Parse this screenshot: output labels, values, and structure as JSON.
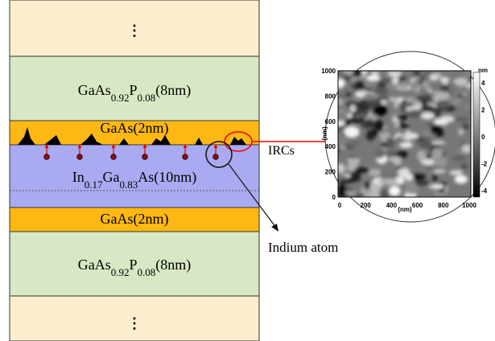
{
  "stack": {
    "top_ellipsis": "⋮",
    "bottom_ellipsis": "⋮",
    "layers": [
      {
        "label": [
          "GaAs",
          "0.92",
          "P",
          "0.08",
          "(8nm)"
        ]
      },
      {
        "label": [
          "GaAs(2nm)"
        ]
      },
      {
        "label": [
          "In",
          "0.17",
          "Ga",
          "0.83",
          "As(10nm)"
        ]
      },
      {
        "label": [
          "GaAs(2nm)"
        ]
      },
      {
        "label": [
          "GaAs",
          "0.92",
          "P",
          "0.08",
          "(8nm)"
        ]
      }
    ]
  },
  "annotations": {
    "ircs": "IRCs",
    "indium_atom": "Indium atom"
  },
  "afm_image": {
    "x_ticks": [
      0,
      200,
      400,
      600,
      800,
      1000
    ],
    "y_ticks": [
      0,
      200,
      400,
      600,
      800,
      1000
    ],
    "x_label": "(nm)",
    "y_label": "(nm)",
    "colorbar_ticks": [
      4,
      2,
      0,
      -2,
      -4
    ],
    "colorbar_unit": "nm"
  }
}
